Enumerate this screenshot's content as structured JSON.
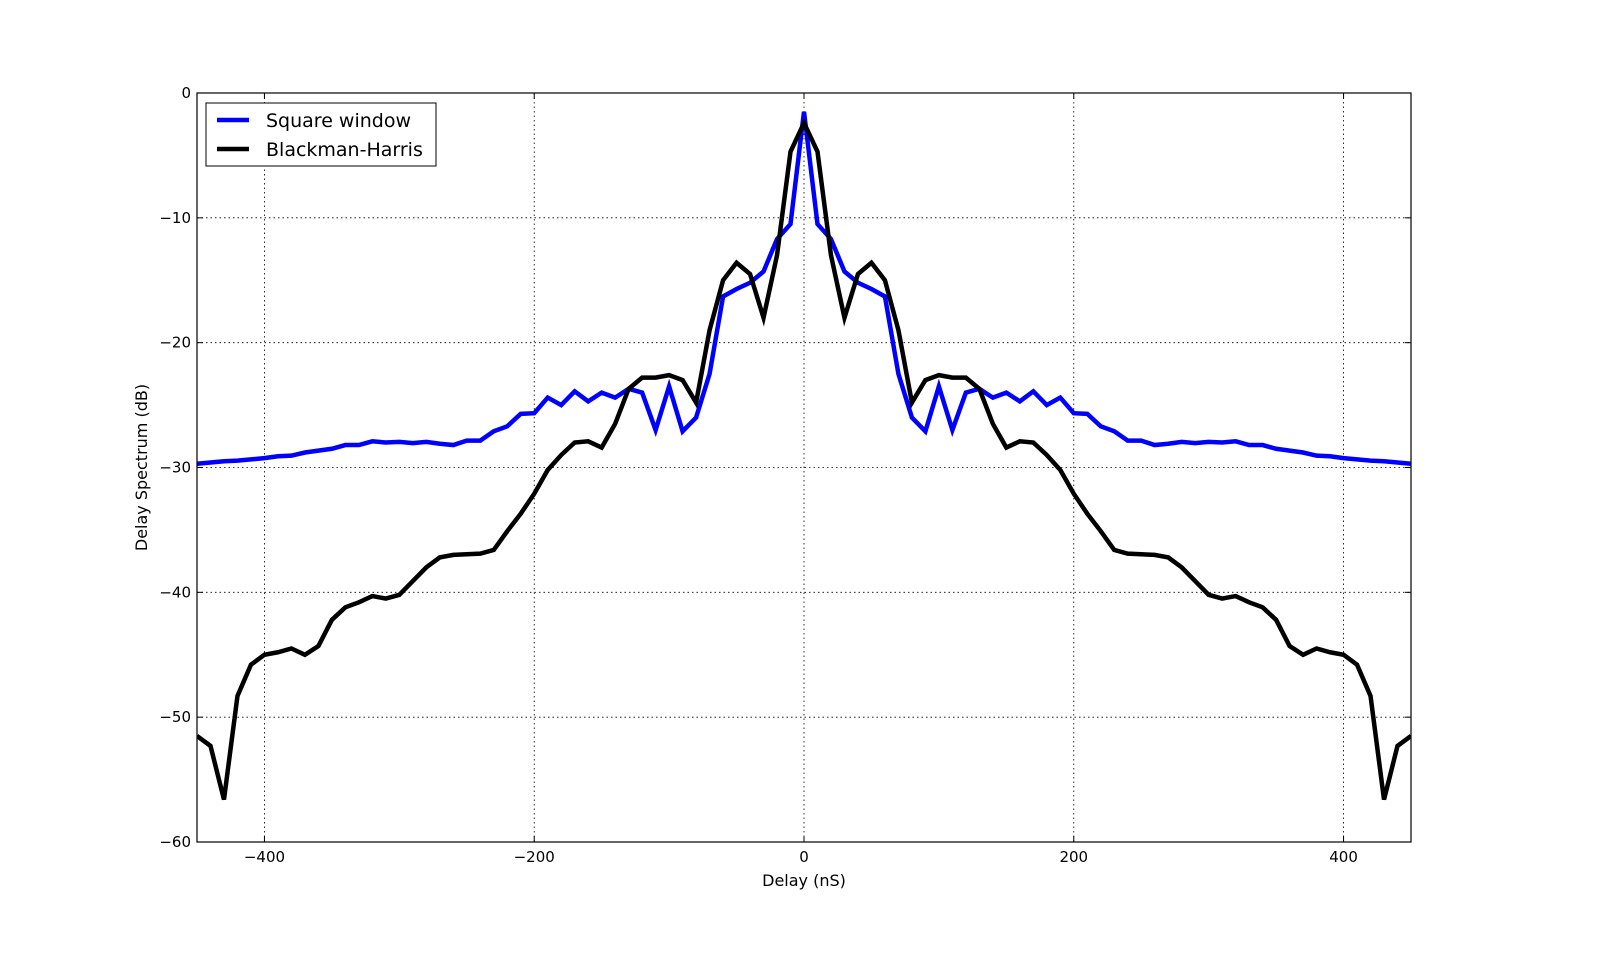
{
  "chart_data": {
    "type": "line",
    "xlabel": "Delay (nS)",
    "ylabel": "Delay Spectrum (dB)",
    "xlim": [
      -450,
      450
    ],
    "ylim": [
      -60,
      0
    ],
    "xticks": [
      -400,
      -200,
      0,
      200,
      400
    ],
    "yticks": [
      -60,
      -50,
      -40,
      -30,
      -20,
      -10,
      0
    ],
    "xtick_labels": [
      "−400",
      "−200",
      "0",
      "200",
      "400"
    ],
    "ytick_labels": [
      "−60",
      "−50",
      "−40",
      "−30",
      "−20",
      "−10",
      "0"
    ],
    "grid": true,
    "legend_position": "top-left",
    "series": [
      {
        "name": "Square window",
        "color": "#0000ff",
        "x": [
          -450,
          -440,
          -430,
          -420,
          -410,
          -400,
          -390,
          -380,
          -370,
          -360,
          -350,
          -340,
          -330,
          -320,
          -310,
          -300,
          -290,
          -280,
          -270,
          -260,
          -250,
          -240,
          -230,
          -220,
          -210,
          -200,
          -190,
          -180,
          -170,
          -160,
          -150,
          -140,
          -130,
          -120,
          -110,
          -100,
          -90,
          -80,
          -70,
          -60,
          -50,
          -40,
          -30,
          -20,
          -10,
          0,
          10,
          20,
          30,
          40,
          50,
          60,
          70,
          80,
          90,
          100,
          110,
          120,
          130,
          140,
          150,
          160,
          170,
          180,
          190,
          200,
          210,
          220,
          230,
          240,
          250,
          260,
          270,
          280,
          290,
          300,
          310,
          320,
          330,
          340,
          350,
          360,
          370,
          380,
          390,
          400,
          410,
          420,
          430,
          440,
          450
        ],
        "values": [
          -29.7,
          -29.6,
          -29.5,
          -29.45,
          -29.35,
          -29.25,
          -29.1,
          -29.05,
          -28.8,
          -28.65,
          -28.5,
          -28.2,
          -28.2,
          -27.9,
          -28.0,
          -27.95,
          -28.05,
          -27.95,
          -28.1,
          -28.2,
          -27.85,
          -27.85,
          -27.1,
          -26.7,
          -25.7,
          -25.65,
          -24.4,
          -25.0,
          -23.9,
          -24.7,
          -24.0,
          -24.4,
          -23.7,
          -24.0,
          -27.0,
          -23.5,
          -27.1,
          -26.0,
          -22.5,
          -16.3,
          -15.7,
          -15.2,
          -14.3,
          -11.7,
          -10.5,
          -1.5,
          -10.5,
          -11.7,
          -14.3,
          -15.2,
          -15.7,
          -16.3,
          -22.5,
          -26.0,
          -27.1,
          -23.5,
          -27.0,
          -24.0,
          -23.7,
          -24.4,
          -24.0,
          -24.7,
          -23.9,
          -25.0,
          -24.4,
          -25.65,
          -25.7,
          -26.7,
          -27.1,
          -27.85,
          -27.85,
          -28.2,
          -28.1,
          -27.95,
          -28.05,
          -27.95,
          -28.0,
          -27.9,
          -28.2,
          -28.2,
          -28.5,
          -28.65,
          -28.8,
          -29.05,
          -29.1,
          -29.25,
          -29.35,
          -29.45,
          -29.5,
          -29.6,
          -29.7
        ]
      },
      {
        "name": "Blackman-Harris",
        "color": "#000000",
        "x": [
          -450,
          -440,
          -430,
          -420,
          -410,
          -400,
          -390,
          -380,
          -370,
          -360,
          -350,
          -340,
          -330,
          -320,
          -310,
          -300,
          -290,
          -280,
          -270,
          -260,
          -250,
          -240,
          -230,
          -220,
          -210,
          -200,
          -190,
          -180,
          -170,
          -160,
          -150,
          -140,
          -130,
          -120,
          -110,
          -100,
          -90,
          -80,
          -70,
          -60,
          -50,
          -40,
          -30,
          -20,
          -10,
          0,
          10,
          20,
          30,
          40,
          50,
          60,
          70,
          80,
          90,
          100,
          110,
          120,
          130,
          140,
          150,
          160,
          170,
          180,
          190,
          200,
          210,
          220,
          230,
          240,
          250,
          260,
          270,
          280,
          290,
          300,
          310,
          320,
          330,
          340,
          350,
          360,
          370,
          380,
          390,
          400,
          410,
          420,
          430,
          440,
          450
        ],
        "values": [
          -51.5,
          -52.3,
          -56.6,
          -48.3,
          -45.8,
          -45.0,
          -44.8,
          -44.5,
          -45.0,
          -44.3,
          -42.2,
          -41.2,
          -40.8,
          -40.3,
          -40.5,
          -40.2,
          -39.1,
          -38.0,
          -37.2,
          -37.0,
          -36.95,
          -36.9,
          -36.6,
          -35.1,
          -33.7,
          -32.1,
          -30.2,
          -29.0,
          -28.0,
          -27.9,
          -28.4,
          -26.5,
          -23.7,
          -22.8,
          -22.8,
          -22.6,
          -23.0,
          -24.8,
          -19.0,
          -15.0,
          -13.6,
          -14.5,
          -18.0,
          -13.0,
          -4.7,
          -2.4,
          -4.7,
          -13.0,
          -18.0,
          -14.5,
          -13.6,
          -15.0,
          -19.0,
          -24.8,
          -23.0,
          -22.6,
          -22.8,
          -22.8,
          -23.7,
          -26.5,
          -28.4,
          -27.9,
          -28.0,
          -29.0,
          -30.2,
          -32.1,
          -33.7,
          -35.1,
          -36.6,
          -36.9,
          -36.95,
          -37.0,
          -37.2,
          -38.0,
          -39.1,
          -40.2,
          -40.5,
          -40.3,
          -40.8,
          -41.2,
          -42.2,
          -44.3,
          -45.0,
          -44.5,
          -44.8,
          -45.0,
          -45.8,
          -48.3,
          -56.6,
          -52.3,
          -51.5
        ]
      }
    ]
  }
}
